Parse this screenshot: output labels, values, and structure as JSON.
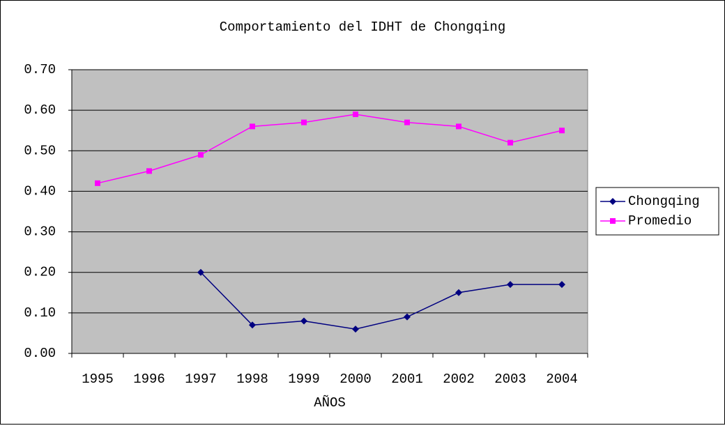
{
  "chart_data": {
    "type": "line",
    "title": "Comportamiento del IDHT de Chongqing",
    "x_label": "AÑOS",
    "categories": [
      "1995",
      "1996",
      "1997",
      "1998",
      "1999",
      "2000",
      "2001",
      "2002",
      "2003",
      "2004"
    ],
    "series": [
      {
        "name": "Chongqing",
        "color": "#000080",
        "marker": "diamond",
        "values": [
          null,
          null,
          0.2,
          0.07,
          0.08,
          0.06,
          0.09,
          0.15,
          0.17,
          0.17
        ]
      },
      {
        "name": "Promedio",
        "color": "#ff00ff",
        "marker": "square",
        "values": [
          0.42,
          0.45,
          0.49,
          0.56,
          0.57,
          0.59,
          0.57,
          0.56,
          0.52,
          0.55
        ]
      }
    ],
    "ylim": [
      0,
      0.7
    ],
    "yticks": [
      {
        "value": 0,
        "label": "0.00"
      },
      {
        "value": 0.1,
        "label": "0.10"
      },
      {
        "value": 0.2,
        "label": "0.20"
      },
      {
        "value": 0.3,
        "label": "0.30"
      },
      {
        "value": 0.4,
        "label": "0.40"
      },
      {
        "value": 0.5,
        "label": "0.50"
      },
      {
        "value": 0.6,
        "label": "0.60"
      },
      {
        "value": 0.7,
        "label": "0.70"
      }
    ],
    "grid": true,
    "legend": "right",
    "plot_background": "#c0c0c0"
  }
}
